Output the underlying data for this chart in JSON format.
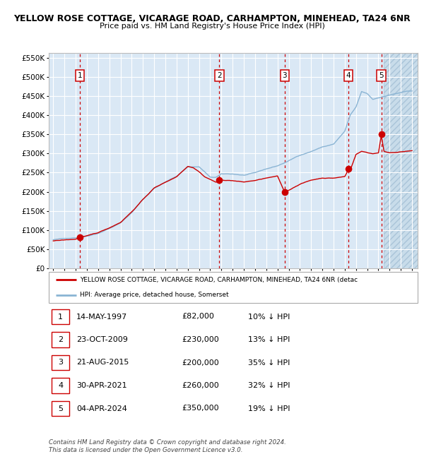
{
  "title": "YELLOW ROSE COTTAGE, VICARAGE ROAD, CARHAMPTON, MINEHEAD, TA24 6NR",
  "subtitle": "Price paid vs. HM Land Registry's House Price Index (HPI)",
  "ylim": [
    0,
    562500
  ],
  "yticks": [
    0,
    50000,
    100000,
    150000,
    200000,
    250000,
    300000,
    350000,
    400000,
    450000,
    500000,
    550000
  ],
  "ytick_labels": [
    "£0",
    "£50K",
    "£100K",
    "£150K",
    "£200K",
    "£250K",
    "£300K",
    "£350K",
    "£400K",
    "£450K",
    "£500K",
    "£550K"
  ],
  "xlim_start": 1994.6,
  "xlim_end": 2027.5,
  "hatch_start": 2024.5,
  "sale_dates": [
    1997.37,
    2009.81,
    2015.64,
    2021.33,
    2024.26
  ],
  "sale_prices": [
    82000,
    230000,
    200000,
    260000,
    350000
  ],
  "sale_labels": [
    "1",
    "2",
    "3",
    "4",
    "5"
  ],
  "sale_table": [
    [
      "1",
      "14-MAY-1997",
      "£82,000",
      "10% ↓ HPI"
    ],
    [
      "2",
      "23-OCT-2009",
      "£230,000",
      "13% ↓ HPI"
    ],
    [
      "3",
      "21-AUG-2015",
      "£200,000",
      "35% ↓ HPI"
    ],
    [
      "4",
      "30-APR-2021",
      "£260,000",
      "32% ↓ HPI"
    ],
    [
      "5",
      "04-APR-2024",
      "£350,000",
      "19% ↓ HPI"
    ]
  ],
  "hpi_color": "#8ab4d4",
  "price_color": "#cc0000",
  "vline_color": "#cc0000",
  "bg_chart": "#dae8f5",
  "legend_house_label": "YELLOW ROSE COTTAGE, VICARAGE ROAD, CARHAMPTON, MINEHEAD, TA24 6NR (detac",
  "legend_hpi_label": "HPI: Average price, detached house, Somerset",
  "footer": "Contains HM Land Registry data © Crown copyright and database right 2024.\nThis data is licensed under the Open Government Licence v3.0."
}
